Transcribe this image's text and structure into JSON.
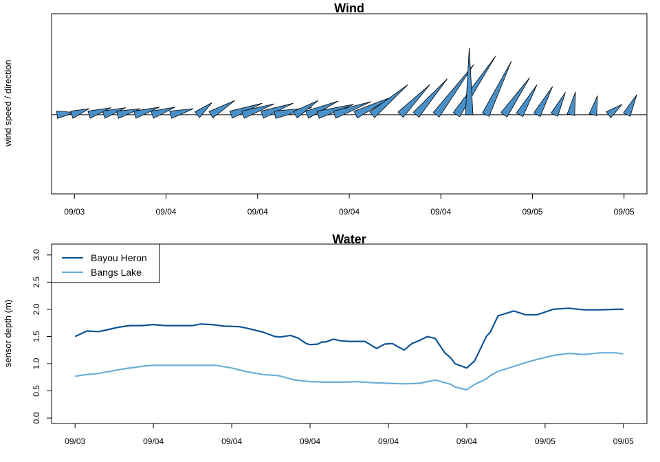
{
  "colors": {
    "wind_fill": "#4a90c8",
    "bayou_heron": "#0b5394",
    "bangs_lake": "#6aaed6"
  },
  "chart_data": [
    {
      "type": "line",
      "subtype": "wind-vector-plot",
      "title": "Wind",
      "ylabel": "wind speed / direction",
      "x_tick_labels": [
        "09/03",
        "09/04",
        "09/04",
        "09/04",
        "09/04",
        "09/05",
        "09/05"
      ],
      "x_ticks": [
        0,
        1,
        2,
        3,
        4,
        5,
        6
      ],
      "xlim": [
        -0.25,
        6.25
      ],
      "ylim": [
        -1.45,
        1.85
      ],
      "y_ticks_shown": false,
      "baseline": 0,
      "vectors": [
        {
          "x": -0.19,
          "u": 0.19,
          "v": 0.04
        },
        {
          "x": -0.03,
          "u": 0.19,
          "v": 0.11
        },
        {
          "x": 0.16,
          "u": 0.24,
          "v": 0.13
        },
        {
          "x": 0.32,
          "u": 0.24,
          "v": 0.13
        },
        {
          "x": 0.47,
          "u": 0.25,
          "v": 0.11
        },
        {
          "x": 0.66,
          "u": 0.27,
          "v": 0.14
        },
        {
          "x": 0.85,
          "u": 0.25,
          "v": 0.14
        },
        {
          "x": 1.05,
          "u": 0.25,
          "v": 0.11
        },
        {
          "x": 1.34,
          "u": 0.16,
          "v": 0.22
        },
        {
          "x": 1.49,
          "u": 0.26,
          "v": 0.26
        },
        {
          "x": 1.71,
          "u": 0.34,
          "v": 0.21
        },
        {
          "x": 1.84,
          "u": 0.34,
          "v": 0.2
        },
        {
          "x": 2.05,
          "u": 0.34,
          "v": 0.21
        },
        {
          "x": 2.19,
          "u": 0.4,
          "v": 0.13
        },
        {
          "x": 2.41,
          "u": 0.25,
          "v": 0.26
        },
        {
          "x": 2.54,
          "u": 0.34,
          "v": 0.25
        },
        {
          "x": 2.66,
          "u": 0.39,
          "v": 0.19
        },
        {
          "x": 2.84,
          "u": 0.4,
          "v": 0.24
        },
        {
          "x": 3.07,
          "u": 0.4,
          "v": 0.33
        },
        {
          "x": 3.25,
          "u": 0.39,
          "v": 0.55
        },
        {
          "x": 3.56,
          "u": 0.32,
          "v": 0.55
        },
        {
          "x": 3.73,
          "u": 0.34,
          "v": 0.66
        },
        {
          "x": 3.95,
          "u": 0.41,
          "v": 0.92
        },
        {
          "x": 4.17,
          "u": 0.43,
          "v": 1.08
        },
        {
          "x": 4.31,
          "u": 0.0,
          "v": 1.22
        },
        {
          "x": 4.49,
          "u": 0.28,
          "v": 0.98
        },
        {
          "x": 4.69,
          "u": 0.28,
          "v": 0.68
        },
        {
          "x": 4.86,
          "u": 0.19,
          "v": 0.55
        },
        {
          "x": 5.05,
          "u": 0.17,
          "v": 0.52
        },
        {
          "x": 5.24,
          "u": 0.12,
          "v": 0.41
        },
        {
          "x": 5.42,
          "u": 0.05,
          "v": 0.42
        },
        {
          "x": 5.66,
          "u": 0.05,
          "v": 0.35
        },
        {
          "x": 5.83,
          "u": 0.15,
          "v": 0.19
        },
        {
          "x": 6.03,
          "u": 0.11,
          "v": 0.37
        }
      ]
    },
    {
      "type": "line",
      "title": "Water",
      "ylabel": "sensor depth (m)",
      "x_tick_labels": [
        "09/03",
        "09/04",
        "09/04",
        "09/04",
        "09/04",
        "09/04",
        "09/05",
        "09/05"
      ],
      "x_ticks": [
        0,
        1,
        2,
        3,
        4,
        5,
        6,
        7
      ],
      "xlim": [
        -0.3,
        7.3
      ],
      "ylim": [
        -0.1,
        3.2
      ],
      "y_ticks": [
        0.0,
        0.5,
        1.0,
        1.5,
        2.0,
        2.5,
        3.0
      ],
      "y_tick_labels": [
        "0.0",
        "0.5",
        "1.0",
        "1.5",
        "2.0",
        "2.5",
        "3.0"
      ],
      "legend_position": "top-left",
      "series": [
        {
          "name": "Bayou Heron",
          "color": "#0b5394",
          "x": [
            0.0,
            0.15,
            0.3,
            0.4,
            0.55,
            0.7,
            0.85,
            1.0,
            1.15,
            1.35,
            1.5,
            1.6,
            1.75,
            1.9,
            2.1,
            2.2,
            2.4,
            2.55,
            2.62,
            2.75,
            2.85,
            2.95,
            3.0,
            3.1,
            3.15,
            3.2,
            3.3,
            3.4,
            3.5,
            3.6,
            3.7,
            3.85,
            3.95,
            4.05,
            4.2,
            4.3,
            4.4,
            4.5,
            4.6,
            4.72,
            4.8,
            4.85,
            5.0,
            5.1,
            5.25,
            5.3,
            5.4,
            5.6,
            5.75,
            5.9,
            6.1,
            6.3,
            6.5,
            6.7,
            6.9,
            7.0
          ],
          "y": [
            1.5,
            1.6,
            1.59,
            1.62,
            1.67,
            1.7,
            1.7,
            1.72,
            1.7,
            1.7,
            1.7,
            1.73,
            1.72,
            1.69,
            1.68,
            1.65,
            1.58,
            1.5,
            1.49,
            1.52,
            1.47,
            1.37,
            1.35,
            1.36,
            1.4,
            1.4,
            1.45,
            1.42,
            1.41,
            1.41,
            1.41,
            1.28,
            1.36,
            1.37,
            1.25,
            1.37,
            1.43,
            1.5,
            1.46,
            1.2,
            1.1,
            1.0,
            0.92,
            1.05,
            1.5,
            1.58,
            1.88,
            1.97,
            1.9,
            1.9,
            2.0,
            2.02,
            1.99,
            1.99,
            2.0,
            2.0
          ]
        },
        {
          "name": "Bangs Lake",
          "color": "#6aaed6",
          "x": [
            0.0,
            0.15,
            0.3,
            0.45,
            0.6,
            0.75,
            0.9,
            1.0,
            1.2,
            1.5,
            1.8,
            2.0,
            2.2,
            2.4,
            2.6,
            2.8,
            3.0,
            3.2,
            3.4,
            3.6,
            3.8,
            4.0,
            4.2,
            4.4,
            4.6,
            4.72,
            4.8,
            4.85,
            5.0,
            5.1,
            5.25,
            5.3,
            5.4,
            5.6,
            5.75,
            5.9,
            6.1,
            6.3,
            6.5,
            6.7,
            6.9,
            7.0
          ],
          "y": [
            0.77,
            0.8,
            0.82,
            0.86,
            0.9,
            0.93,
            0.96,
            0.97,
            0.97,
            0.97,
            0.97,
            0.92,
            0.85,
            0.8,
            0.78,
            0.7,
            0.67,
            0.66,
            0.66,
            0.67,
            0.65,
            0.64,
            0.63,
            0.64,
            0.7,
            0.65,
            0.62,
            0.57,
            0.52,
            0.62,
            0.72,
            0.78,
            0.86,
            0.95,
            1.02,
            1.08,
            1.15,
            1.19,
            1.17,
            1.2,
            1.2,
            1.18
          ]
        }
      ]
    }
  ]
}
